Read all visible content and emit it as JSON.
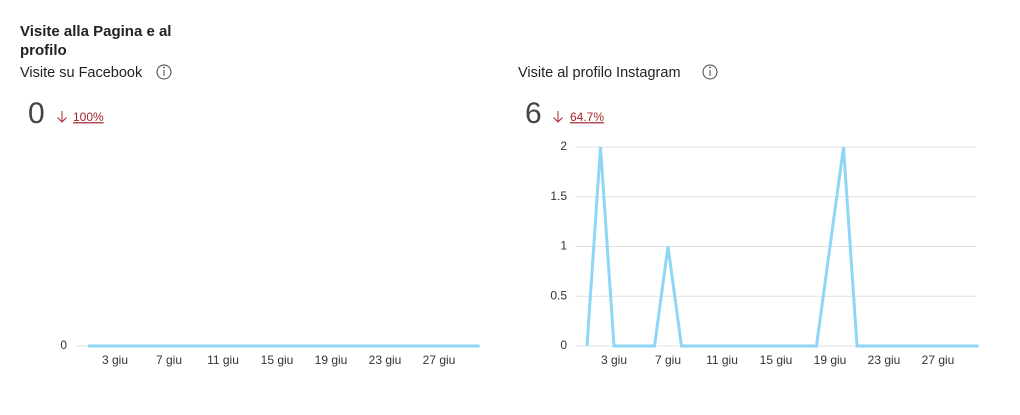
{
  "title": "Visite alla Pagina e al profilo",
  "chart_data": [
    {
      "type": "line",
      "title": "Visite su Facebook",
      "total": 0,
      "change": "100%",
      "categories": [
        null,
        null,
        "3 giu",
        null,
        null,
        null,
        "7 giu",
        null,
        null,
        null,
        "11 giu",
        null,
        null,
        null,
        "15 giu",
        null,
        null,
        null,
        "19 giu",
        null,
        null,
        null,
        "23 giu",
        null,
        null,
        null,
        "27 giu",
        null,
        null,
        null
      ],
      "values": [
        0,
        0,
        0,
        0,
        0,
        0,
        0,
        0,
        0,
        0,
        0,
        0,
        0,
        0,
        0,
        0,
        0,
        0,
        0,
        0,
        0,
        0,
        0,
        0,
        0,
        0,
        0,
        0,
        0,
        0
      ],
      "color": "#8fd6f6",
      "ylim": [
        0,
        1
      ],
      "yticks": [
        0
      ],
      "grid": true
    },
    {
      "type": "line",
      "title": "Visite al profilo Instagram",
      "total": 6,
      "change": "64.7%",
      "categories": [
        null,
        null,
        "3 giu",
        null,
        null,
        null,
        "7 giu",
        null,
        null,
        null,
        "11 giu",
        null,
        null,
        null,
        "15 giu",
        null,
        null,
        null,
        "19 giu",
        null,
        null,
        null,
        "23 giu",
        null,
        null,
        null,
        "27 giu",
        null,
        null,
        null
      ],
      "values": [
        0,
        2,
        0,
        0,
        0,
        0,
        1,
        0,
        0,
        0,
        0,
        0,
        0,
        0,
        0,
        0,
        0,
        0,
        1,
        2,
        0,
        0,
        0,
        0,
        0,
        0,
        0,
        0,
        0,
        0
      ],
      "color": "#8fd6f6",
      "ylim": [
        0,
        2
      ],
      "yticks": [
        0,
        0.5,
        1,
        1.5,
        2
      ],
      "grid": true
    }
  ]
}
